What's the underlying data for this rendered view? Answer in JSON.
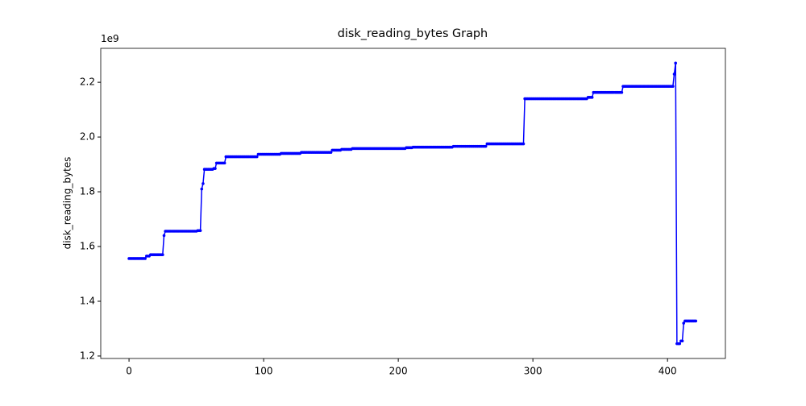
{
  "chart_data": {
    "type": "line",
    "title": "disk_reading_bytes Graph",
    "ylabel": "disk_reading_bytes",
    "y_offset_label": "1e9",
    "color": "#0000ff",
    "xlim": [
      -21,
      443
    ],
    "xticks": [
      0,
      100,
      200,
      300,
      400
    ],
    "ylim": [
      1.191,
      2.324
    ],
    "yticks": [
      1.2,
      1.4,
      1.6,
      1.8,
      {
        "value": 2,
        "label": "2.0"
      },
      2.2
    ],
    "values": [
      1.556,
      1.556,
      1.556,
      1.556,
      1.556,
      1.556,
      1.556,
      1.556,
      1.556,
      1.556,
      1.556,
      1.556,
      1.556,
      1.565,
      1.565,
      1.565,
      1.57,
      1.57,
      1.57,
      1.57,
      1.57,
      1.57,
      1.57,
      1.57,
      1.57,
      1.57,
      1.64,
      1.656,
      1.656,
      1.656,
      1.656,
      1.656,
      1.656,
      1.656,
      1.656,
      1.656,
      1.656,
      1.656,
      1.656,
      1.656,
      1.656,
      1.656,
      1.656,
      1.656,
      1.656,
      1.656,
      1.656,
      1.656,
      1.656,
      1.656,
      1.656,
      1.658,
      1.658,
      1.658,
      1.81,
      1.83,
      1.882,
      1.882,
      1.882,
      1.882,
      1.882,
      1.882,
      1.882,
      1.885,
      1.885,
      1.905,
      1.905,
      1.905,
      1.905,
      1.905,
      1.905,
      1.905,
      1.928,
      1.928,
      1.928,
      1.928,
      1.928,
      1.928,
      1.928,
      1.928,
      1.928,
      1.928,
      1.928,
      1.928,
      1.928,
      1.928,
      1.928,
      1.928,
      1.928,
      1.928,
      1.928,
      1.928,
      1.928,
      1.928,
      1.928,
      1.928,
      1.937,
      1.937,
      1.937,
      1.937,
      1.937,
      1.937,
      1.937,
      1.937,
      1.937,
      1.937,
      1.937,
      1.937,
      1.937,
      1.937,
      1.937,
      1.937,
      1.937,
      1.94,
      1.94,
      1.94,
      1.94,
      1.94,
      1.94,
      1.94,
      1.94,
      1.94,
      1.94,
      1.94,
      1.94,
      1.94,
      1.94,
      1.94,
      1.944,
      1.944,
      1.944,
      1.944,
      1.944,
      1.944,
      1.944,
      1.944,
      1.944,
      1.944,
      1.944,
      1.944,
      1.944,
      1.944,
      1.944,
      1.944,
      1.944,
      1.944,
      1.944,
      1.944,
      1.944,
      1.944,
      1.944,
      1.952,
      1.952,
      1.952,
      1.952,
      1.952,
      1.952,
      1.952,
      1.955,
      1.955,
      1.955,
      1.955,
      1.955,
      1.955,
      1.955,
      1.955,
      1.958,
      1.958,
      1.958,
      1.958,
      1.958,
      1.958,
      1.958,
      1.958,
      1.958,
      1.958,
      1.958,
      1.958,
      1.958,
      1.958,
      1.958,
      1.958,
      1.958,
      1.958,
      1.958,
      1.958,
      1.958,
      1.958,
      1.958,
      1.958,
      1.958,
      1.958,
      1.958,
      1.958,
      1.958,
      1.958,
      1.958,
      1.958,
      1.958,
      1.958,
      1.958,
      1.958,
      1.958,
      1.958,
      1.958,
      1.958,
      1.961,
      1.961,
      1.961,
      1.961,
      1.961,
      1.963,
      1.963,
      1.963,
      1.963,
      1.963,
      1.963,
      1.963,
      1.963,
      1.963,
      1.963,
      1.963,
      1.963,
      1.963,
      1.963,
      1.963,
      1.963,
      1.963,
      1.963,
      1.963,
      1.963,
      1.963,
      1.963,
      1.963,
      1.963,
      1.963,
      1.963,
      1.963,
      1.963,
      1.963,
      1.963,
      1.966,
      1.966,
      1.966,
      1.966,
      1.966,
      1.966,
      1.966,
      1.966,
      1.966,
      1.966,
      1.966,
      1.966,
      1.966,
      1.966,
      1.966,
      1.966,
      1.966,
      1.966,
      1.966,
      1.966,
      1.966,
      1.966,
      1.966,
      1.966,
      1.966,
      1.975,
      1.975,
      1.975,
      1.975,
      1.975,
      1.975,
      1.975,
      1.975,
      1.975,
      1.975,
      1.975,
      1.975,
      1.975,
      1.975,
      1.975,
      1.975,
      1.975,
      1.975,
      1.975,
      1.975,
      1.975,
      1.975,
      1.975,
      1.975,
      1.975,
      1.975,
      1.975,
      1.975,
      2.14,
      2.14,
      2.14,
      2.14,
      2.14,
      2.14,
      2.14,
      2.14,
      2.14,
      2.14,
      2.14,
      2.14,
      2.14,
      2.14,
      2.14,
      2.14,
      2.14,
      2.14,
      2.14,
      2.14,
      2.14,
      2.14,
      2.14,
      2.14,
      2.14,
      2.14,
      2.14,
      2.14,
      2.14,
      2.14,
      2.14,
      2.14,
      2.14,
      2.14,
      2.14,
      2.14,
      2.14,
      2.14,
      2.14,
      2.14,
      2.14,
      2.14,
      2.14,
      2.14,
      2.14,
      2.14,
      2.14,
      2.145,
      2.145,
      2.145,
      2.145,
      2.163,
      2.163,
      2.163,
      2.163,
      2.163,
      2.163,
      2.163,
      2.163,
      2.163,
      2.163,
      2.163,
      2.163,
      2.163,
      2.163,
      2.163,
      2.163,
      2.163,
      2.163,
      2.163,
      2.163,
      2.163,
      2.163,
      2.185,
      2.185,
      2.185,
      2.185,
      2.185,
      2.185,
      2.185,
      2.185,
      2.185,
      2.185,
      2.185,
      2.185,
      2.185,
      2.185,
      2.185,
      2.185,
      2.185,
      2.185,
      2.185,
      2.185,
      2.185,
      2.185,
      2.185,
      2.185,
      2.185,
      2.185,
      2.185,
      2.185,
      2.185,
      2.185,
      2.185,
      2.185,
      2.185,
      2.185,
      2.185,
      2.185,
      2.185,
      2.185,
      2.23,
      2.27,
      1.245,
      1.245,
      1.245,
      1.255,
      1.255,
      1.32,
      1.328,
      1.328,
      1.328,
      1.328,
      1.328,
      1.328,
      1.328,
      1.328,
      1.328
    ]
  }
}
